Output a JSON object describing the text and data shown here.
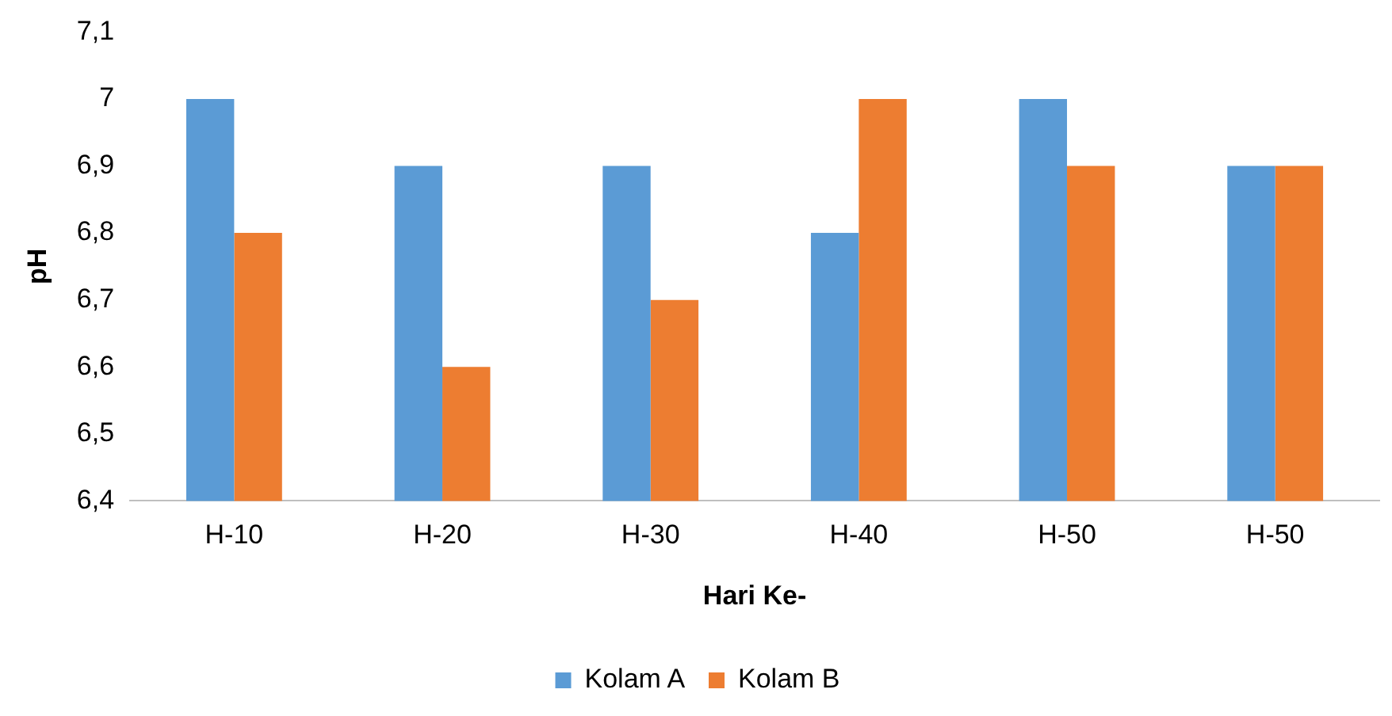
{
  "chart_data": {
    "type": "bar",
    "xlabel": "Hari Ke-",
    "ylabel": "pH",
    "categories": [
      "H-10",
      "H-20",
      "H-30",
      "H-40",
      "H-50",
      "H-50"
    ],
    "series": [
      {
        "name": "Kolam A",
        "color": "#5b9bd5",
        "values": [
          7,
          6.9,
          6.9,
          6.8,
          7,
          6.9
        ]
      },
      {
        "name": "Kolam B",
        "color": "#ed7d31",
        "values": [
          6.8,
          6.6,
          6.7,
          7,
          6.9,
          6.9
        ]
      }
    ],
    "ylim": [
      6.4,
      7.1
    ],
    "yticks": [
      {
        "value": 6.4,
        "label": "6,4"
      },
      {
        "value": 6.5,
        "label": "6,5"
      },
      {
        "value": 6.6,
        "label": "6,6"
      },
      {
        "value": 6.7,
        "label": "6,7"
      },
      {
        "value": 6.8,
        "label": "6,8"
      },
      {
        "value": 6.9,
        "label": "6,9"
      },
      7,
      {
        "value": 7.1,
        "label": "7,1"
      }
    ],
    "grid": false,
    "legend": "bottom"
  }
}
